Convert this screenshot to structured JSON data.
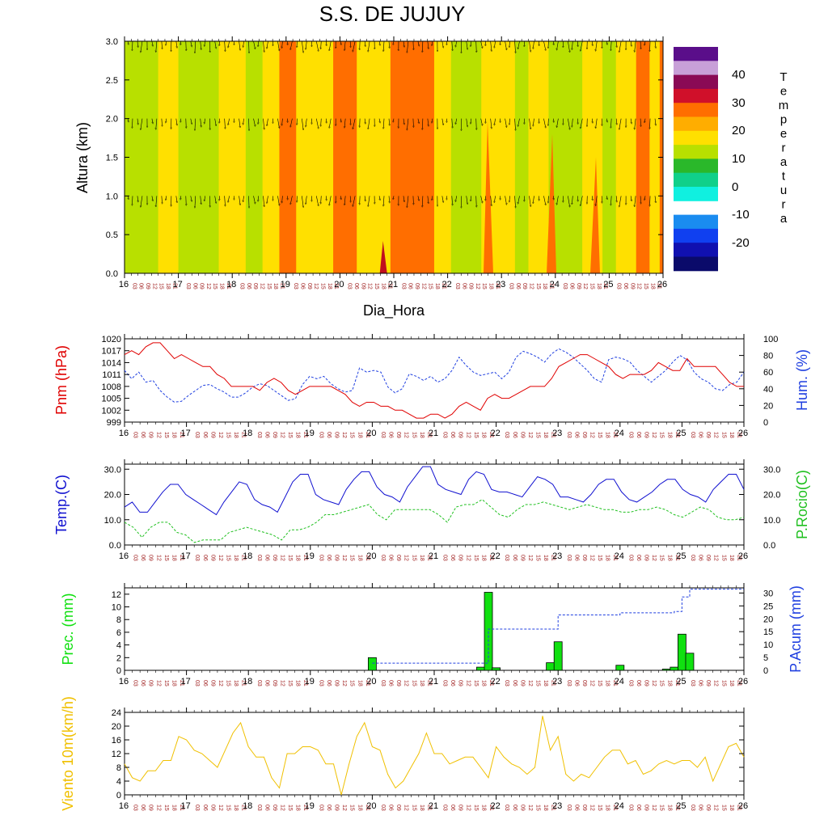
{
  "title": "S.S. DE JUJUY",
  "colors": {
    "pnm": "#e00000",
    "hum": "#2040e0",
    "temp": "#1010d0",
    "rocio": "#20c020",
    "prec": "#10e010",
    "acum": "#2040e0",
    "wind": "#f0c000"
  },
  "days": [
    "16",
    "17",
    "18",
    "19",
    "20",
    "21",
    "22",
    "23",
    "24",
    "25",
    "26"
  ],
  "hours": [
    "03",
    "06",
    "09",
    "12",
    "15",
    "18",
    "21"
  ],
  "chart_data": [
    {
      "type": "heatmap",
      "name": "temperature-section",
      "xlabel": "Dia_Hora",
      "ylabel": "Altura (km)",
      "yticks": [
        "0.0",
        "0.5",
        "1.0",
        "1.5",
        "2.0",
        "2.5",
        "3.0"
      ],
      "ylim": [
        0,
        3
      ],
      "legend_title": "Temperatura",
      "legend_labels": [
        "40",
        "30",
        "20",
        "10",
        "0",
        "-10",
        "-20"
      ],
      "legend_colors": [
        "#5a0e8a",
        "#c8a0d8",
        "#8a0a55",
        "#d0102a",
        "#ff6e00",
        "#ffad00",
        "#ffe000",
        "#b8e000",
        "#2ab82a",
        "#10d08a",
        "#10f0e0",
        "#ffffff",
        "#1a8cf0",
        "#1040f0",
        "#1010b0",
        "#0a0a6a"
      ],
      "bands": [
        {
          "from": 0,
          "to": 5,
          "color": "#b8e000"
        },
        {
          "from": 5,
          "to": 8,
          "color": "#ffe000"
        },
        {
          "from": 8,
          "to": 14,
          "color": "#b8e000"
        },
        {
          "from": 14,
          "to": 18,
          "color": "#ffe000"
        },
        {
          "from": 18,
          "to": 20.5,
          "color": "#b8e000"
        },
        {
          "from": 20.5,
          "to": 23,
          "color": "#ffe000"
        },
        {
          "from": 23,
          "to": 25.5,
          "color": "#ff6e00"
        },
        {
          "from": 25.5,
          "to": 31,
          "color": "#ffe000"
        },
        {
          "from": 31,
          "to": 34.5,
          "color": "#ff6e00"
        },
        {
          "from": 34.5,
          "to": 39.5,
          "color": "#ffe000"
        },
        {
          "from": 39.5,
          "to": 46,
          "color": "#ff6e00"
        },
        {
          "from": 46,
          "to": 48.5,
          "color": "#ffe000"
        },
        {
          "from": 48.5,
          "to": 53,
          "color": "#b8e000"
        },
        {
          "from": 53,
          "to": 58,
          "color": "#ffe000"
        },
        {
          "from": 58,
          "to": 60,
          "color": "#b8e000"
        },
        {
          "from": 60,
          "to": 63,
          "color": "#ffe000"
        },
        {
          "from": 63,
          "to": 68,
          "color": "#b8e000"
        },
        {
          "from": 68,
          "to": 71,
          "color": "#ffe000"
        },
        {
          "from": 71,
          "to": 73,
          "color": "#b8e000"
        },
        {
          "from": 73,
          "to": 76,
          "color": "#ffe000"
        },
        {
          "from": 76,
          "to": 78,
          "color": "#ff6e00"
        },
        {
          "from": 78,
          "to": 79.5,
          "color": "#ffe000"
        },
        {
          "from": 79.5,
          "to": 80,
          "color": "#ff6e00"
        }
      ],
      "hot_spot_day": 20.8
    },
    {
      "type": "line",
      "name": "pressure-humidity",
      "ylabel_left": "Pnm (hPa)",
      "ylabel_right": "Hum. (%)",
      "ylim_left": [
        999,
        1020
      ],
      "yticks_left": [
        "999",
        "1002",
        "1005",
        "1008",
        "1011",
        "1014",
        "1017",
        "1020"
      ],
      "ylim_right": [
        0,
        100
      ],
      "yticks_right": [
        "0",
        "20",
        "40",
        "60",
        "80",
        "100"
      ],
      "series": [
        {
          "name": "Pnm",
          "axis": "left",
          "values": [
            1016,
            1017,
            1016,
            1018,
            1019,
            1019,
            1017,
            1015,
            1016,
            1015,
            1014,
            1013,
            1013,
            1011,
            1010,
            1008,
            1008,
            1008,
            1008,
            1007,
            1009,
            1010,
            1009,
            1007,
            1006,
            1007,
            1008,
            1008,
            1008,
            1008,
            1007,
            1006,
            1004,
            1003,
            1004,
            1004,
            1003,
            1003,
            1002,
            1002,
            1001,
            1000,
            1000,
            1001,
            1001,
            1000,
            1001,
            1003,
            1004,
            1003,
            1002,
            1005,
            1006,
            1005,
            1005,
            1006,
            1007,
            1008,
            1008,
            1008,
            1010,
            1013,
            1014,
            1015,
            1016,
            1016,
            1015,
            1014,
            1013,
            1011,
            1010,
            1011,
            1011,
            1011,
            1012,
            1014,
            1013,
            1012,
            1012,
            1015,
            1013,
            1013,
            1013,
            1013,
            1011,
            1009,
            1008,
            1008
          ]
        },
        {
          "name": "Hum",
          "axis": "right",
          "values": [
            62,
            52,
            60,
            48,
            50,
            38,
            30,
            24,
            25,
            32,
            38,
            44,
            45,
            40,
            36,
            30,
            30,
            35,
            42,
            46,
            44,
            38,
            32,
            26,
            28,
            45,
            55,
            52,
            55,
            46,
            40,
            36,
            38,
            65,
            60,
            62,
            60,
            42,
            35,
            40,
            58,
            55,
            50,
            55,
            48,
            52,
            62,
            78,
            68,
            60,
            56,
            58,
            60,
            52,
            60,
            78,
            85,
            82,
            78,
            72,
            82,
            88,
            84,
            78,
            70,
            62,
            52,
            48,
            75,
            78,
            76,
            72,
            62,
            55,
            48,
            55,
            62,
            72,
            80,
            75,
            60,
            52,
            48,
            40,
            38,
            45,
            48,
            60
          ]
        }
      ]
    },
    {
      "type": "line",
      "name": "temperature-dewpoint",
      "ylabel_left": "Temp.(C)",
      "ylabel_right": "P.Rocio(C)",
      "ylim": [
        0,
        32
      ],
      "yticks": [
        "0.0",
        "10.0",
        "20.0",
        "30.0"
      ],
      "series": [
        {
          "name": "Temp",
          "axis": "left",
          "values": [
            15,
            17,
            13,
            13,
            17,
            21,
            24,
            24,
            20,
            18,
            16,
            14,
            12,
            17,
            21,
            25,
            24,
            18,
            16,
            15,
            13,
            19,
            25,
            28,
            28,
            20,
            18,
            17,
            16,
            22,
            26,
            29,
            29,
            23,
            20,
            19,
            17,
            23,
            27,
            31,
            31,
            24,
            22,
            21,
            20,
            26,
            29,
            28,
            22,
            21,
            21,
            20,
            19,
            23,
            27,
            26,
            24,
            19,
            19,
            18,
            17,
            20,
            24,
            26,
            26,
            21,
            18,
            17,
            19,
            21,
            24,
            26,
            26,
            22,
            20,
            19,
            17,
            22,
            25,
            28,
            28,
            22
          ]
        },
        {
          "name": "P.Rocio",
          "axis": "right",
          "values": [
            9,
            7,
            3,
            7,
            9,
            9,
            5,
            4,
            1,
            2,
            2,
            2,
            5,
            6,
            7,
            6,
            5,
            4,
            2,
            6,
            6,
            7,
            9,
            12,
            12,
            13,
            14,
            15,
            16,
            12,
            10,
            14,
            14,
            14,
            14,
            14,
            12,
            9,
            15,
            16,
            16,
            18,
            15,
            12,
            11,
            14,
            16,
            16,
            17,
            16,
            15,
            14,
            15,
            16,
            15,
            14,
            14,
            13,
            13,
            14,
            14,
            15,
            14,
            12,
            11,
            13,
            15,
            14,
            11,
            10,
            10,
            11
          ]
        }
      ]
    },
    {
      "type": "bar",
      "name": "precipitation",
      "ylabel_left": "Prec. (mm)",
      "ylabel_right": "P.Acum (mm)",
      "ylim_left": [
        0,
        13
      ],
      "yticks_left": [
        "0",
        "2",
        "4",
        "6",
        "8",
        "10",
        "12"
      ],
      "ylim_right": [
        0,
        32
      ],
      "yticks_right": [
        "0",
        "5",
        "10",
        "15",
        "20",
        "25",
        "30"
      ],
      "bars": [
        {
          "day": 20.0,
          "value": 2.0
        },
        {
          "day": 21.75,
          "value": 0.5
        },
        {
          "day": 21.875,
          "value": 12.3
        },
        {
          "day": 22.0,
          "value": 0.4
        },
        {
          "day": 22.875,
          "value": 1.2
        },
        {
          "day": 23.0,
          "value": 4.5
        },
        {
          "day": 24.0,
          "value": 0.8
        },
        {
          "day": 24.75,
          "value": 0.2
        },
        {
          "day": 24.875,
          "value": 0.5
        },
        {
          "day": 25.0,
          "value": 5.7
        },
        {
          "day": 25.125,
          "value": 2.7
        }
      ],
      "accum": [
        {
          "day": 20.0,
          "value": 2.8
        },
        {
          "day": 21.75,
          "value": 2.8
        },
        {
          "day": 21.875,
          "value": 16
        },
        {
          "day": 22.875,
          "value": 16
        },
        {
          "day": 23.0,
          "value": 21.5
        },
        {
          "day": 24.0,
          "value": 22.3
        },
        {
          "day": 24.875,
          "value": 22.8
        },
        {
          "day": 25.0,
          "value": 28.5
        },
        {
          "day": 25.125,
          "value": 31.5
        },
        {
          "day": 26.0,
          "value": 31.5
        }
      ]
    },
    {
      "type": "line",
      "name": "wind-10m",
      "ylabel": "Viento 10m(km/h)",
      "ylim": [
        0,
        24
      ],
      "yticks": [
        "0",
        "4",
        "8",
        "12",
        "16",
        "20",
        "24"
      ],
      "series": [
        {
          "name": "Viento",
          "values": [
            9,
            5,
            4,
            7,
            7,
            10,
            10,
            17,
            16,
            13,
            12,
            10,
            8,
            13,
            18,
            21,
            14,
            11,
            11,
            5,
            2,
            12,
            12,
            14,
            14,
            13,
            9,
            9,
            0,
            9,
            17,
            21,
            14,
            13,
            6,
            2,
            4,
            8,
            12,
            18,
            12,
            12,
            9,
            10,
            11,
            11,
            8,
            5,
            14,
            11,
            9,
            8,
            6,
            8,
            23,
            13,
            17,
            6,
            4,
            6,
            5,
            8,
            11,
            13,
            13,
            9,
            10,
            6,
            7,
            9,
            10,
            9,
            10,
            10,
            8,
            11,
            4,
            9,
            14,
            15,
            11
          ]
        }
      ]
    }
  ]
}
